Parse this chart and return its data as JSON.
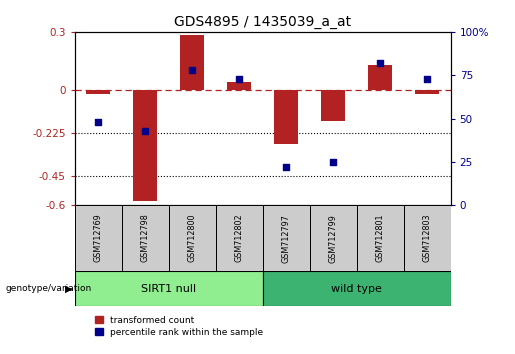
{
  "title": "GDS4895 / 1435039_a_at",
  "samples": [
    "GSM712769",
    "GSM712798",
    "GSM712800",
    "GSM712802",
    "GSM712797",
    "GSM712799",
    "GSM712801",
    "GSM712803"
  ],
  "red_values": [
    -0.02,
    -0.58,
    0.285,
    0.04,
    -0.28,
    -0.16,
    0.13,
    -0.02
  ],
  "blue_values_pct": [
    48,
    43,
    78,
    73,
    22,
    25,
    82,
    73
  ],
  "groups": [
    {
      "label": "SIRT1 null",
      "start": 0,
      "end": 4,
      "color": "#90ee90"
    },
    {
      "label": "wild type",
      "start": 4,
      "end": 8,
      "color": "#3cb371"
    }
  ],
  "ylim_left": [
    -0.6,
    0.3
  ],
  "ylim_right": [
    0,
    100
  ],
  "yticks_left": [
    -0.6,
    -0.45,
    -0.225,
    0,
    0.3
  ],
  "ytick_labels_left": [
    "-0.6",
    "-0.45",
    "-0.225",
    "0",
    "0.3"
  ],
  "yticks_right": [
    0,
    25,
    50,
    75,
    100
  ],
  "ytick_labels_right": [
    "0",
    "25",
    "50",
    "75",
    "100%"
  ],
  "hline_y": 0,
  "dotted_lines": [
    -0.225,
    -0.45
  ],
  "bar_color": "#b22222",
  "dot_color": "#00008b",
  "bar_width": 0.5,
  "genotype_label": "genotype/variation",
  "legend_red": "transformed count",
  "legend_blue": "percentile rank within the sample",
  "background_color": "#ffffff",
  "group_label_color": "#lightgreen",
  "sirt1_null_color": "#90ee90",
  "wild_type_color": "#3cb371"
}
